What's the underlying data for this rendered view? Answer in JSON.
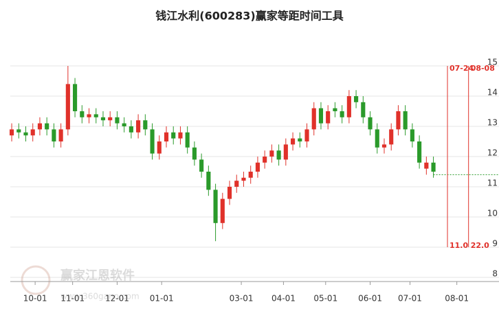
{
  "chart_data": {
    "type": "candlestick",
    "title": "钱江水利(600283)赢家等距时间工具",
    "watermark": {
      "name": "赢家江恩软件",
      "url": "www.360gann.com"
    },
    "x": [
      0,
      3,
      6,
      9,
      12,
      15,
      18,
      21,
      24,
      27,
      30,
      33,
      36,
      39,
      42,
      45,
      48,
      51,
      54,
      57,
      60,
      63,
      66,
      69,
      72,
      75,
      78,
      81,
      84,
      87,
      90,
      93,
      96,
      99,
      102,
      105,
      108,
      111,
      114,
      117,
      120,
      123,
      126,
      129,
      132,
      135,
      138,
      141,
      144,
      147,
      150,
      153,
      156,
      159,
      162,
      165,
      168,
      171,
      174,
      177,
      180
    ],
    "open": [
      12.7,
      12.9,
      12.8,
      12.7,
      12.9,
      13.1,
      12.9,
      12.5,
      12.9,
      14.4,
      13.5,
      13.3,
      13.4,
      13.3,
      13.2,
      13.3,
      13.1,
      13.0,
      12.8,
      13.2,
      12.9,
      12.1,
      12.5,
      12.8,
      12.6,
      12.8,
      12.3,
      11.9,
      11.5,
      10.9,
      9.8,
      10.6,
      11.0,
      11.2,
      11.3,
      11.5,
      11.8,
      12.0,
      12.2,
      11.9,
      12.4,
      12.6,
      12.5,
      12.9,
      13.6,
      13.1,
      13.6,
      13.5,
      13.3,
      14.0,
      13.8,
      13.3,
      12.9,
      12.3,
      12.4,
      12.9,
      13.5,
      12.9,
      12.5,
      11.6,
      11.8
    ],
    "high": [
      13.1,
      13.1,
      13.0,
      13.1,
      13.3,
      13.3,
      13.1,
      13.1,
      15.0,
      14.6,
      13.7,
      13.6,
      13.6,
      13.5,
      13.5,
      13.5,
      13.3,
      13.2,
      13.4,
      13.4,
      13.1,
      12.7,
      13.0,
      13.0,
      13.0,
      13.0,
      12.5,
      12.1,
      11.7,
      11.1,
      10.8,
      11.2,
      11.4,
      11.5,
      11.7,
      12.0,
      12.2,
      12.4,
      12.4,
      12.6,
      12.8,
      12.8,
      13.1,
      13.8,
      13.8,
      13.7,
      13.8,
      13.7,
      14.2,
      14.2,
      14.0,
      13.5,
      13.1,
      12.6,
      13.1,
      13.7,
      13.7,
      13.1,
      12.7,
      12.0,
      12.0
    ],
    "low": [
      12.5,
      12.6,
      12.5,
      12.5,
      12.7,
      12.7,
      12.3,
      12.3,
      12.7,
      13.3,
      13.1,
      13.1,
      13.1,
      13.0,
      13.0,
      12.9,
      12.8,
      12.6,
      12.6,
      12.7,
      11.9,
      11.9,
      12.3,
      12.4,
      12.4,
      12.1,
      11.7,
      11.3,
      10.7,
      9.2,
      9.6,
      10.4,
      10.8,
      11.0,
      11.1,
      11.3,
      11.6,
      11.8,
      11.7,
      11.7,
      12.2,
      12.3,
      12.3,
      12.7,
      12.9,
      12.9,
      13.3,
      13.1,
      13.1,
      13.6,
      13.1,
      12.7,
      12.1,
      12.1,
      12.2,
      12.7,
      12.7,
      12.3,
      11.6,
      11.4,
      11.3
    ],
    "close": [
      12.9,
      12.8,
      12.7,
      12.9,
      13.1,
      12.9,
      12.5,
      12.9,
      14.4,
      13.5,
      13.3,
      13.4,
      13.3,
      13.2,
      13.3,
      13.1,
      13.0,
      12.8,
      13.2,
      12.9,
      12.1,
      12.5,
      12.8,
      12.6,
      12.8,
      12.3,
      11.9,
      11.5,
      10.9,
      9.8,
      10.6,
      11.0,
      11.2,
      11.3,
      11.5,
      11.8,
      12.0,
      12.2,
      11.9,
      12.4,
      12.6,
      12.5,
      12.9,
      13.6,
      13.1,
      13.5,
      13.5,
      13.3,
      14.0,
      13.8,
      13.3,
      12.9,
      12.3,
      12.4,
      12.9,
      13.5,
      12.9,
      12.5,
      11.8,
      11.8,
      11.5
    ],
    "up_color": "#e0312a",
    "down_color": "#2a9a2a",
    "xlim": [
      -5,
      208
    ],
    "ylim": [
      8,
      16
    ],
    "xticks": [
      {
        "value": 10,
        "label": "10-01"
      },
      {
        "value": 26,
        "label": "11-01"
      },
      {
        "value": 45,
        "label": "12-01"
      },
      {
        "value": 64,
        "label": "01-01"
      },
      {
        "value": 98,
        "label": "03-01"
      },
      {
        "value": 116,
        "label": "04-01"
      },
      {
        "value": 134,
        "label": "05-01"
      },
      {
        "value": 153,
        "label": "06-01"
      },
      {
        "value": 170,
        "label": "07-01"
      },
      {
        "value": 190,
        "label": "08-01"
      }
    ],
    "yticks": [
      8,
      9,
      10,
      11,
      12,
      13,
      14,
      15
    ],
    "grid": true,
    "hline": {
      "value": 11.4,
      "from": 180,
      "color": "#2a9a2a"
    },
    "vlines": [
      {
        "x": 186,
        "top_label": "07-24",
        "bottom_label": "11.0",
        "color": "#e0312a"
      },
      {
        "x": 195,
        "top_label": "08-08",
        "bottom_label": "22.0",
        "color": "#e0312a"
      }
    ]
  }
}
